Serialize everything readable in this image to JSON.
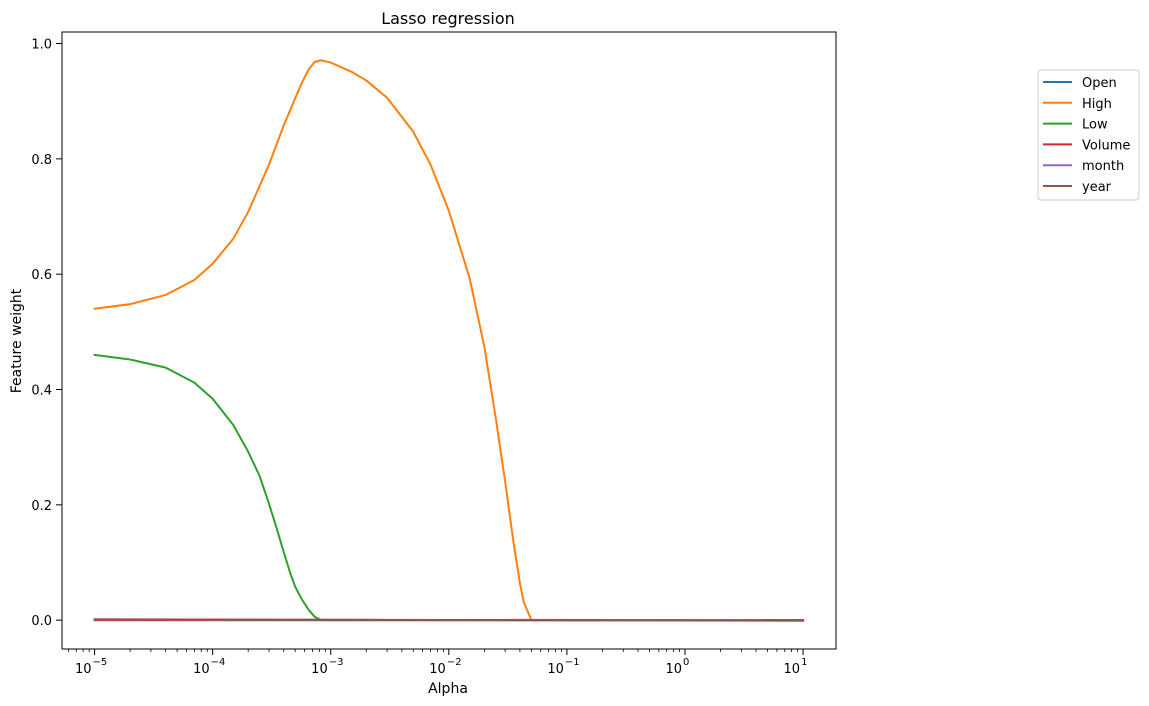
{
  "chart_data": {
    "type": "line",
    "title": "Lasso regression",
    "xlabel": "Alpha",
    "ylabel": "Feature weight",
    "xscale": "log",
    "xlim": [
      5.3e-06,
      19.0
    ],
    "ylim": [
      -0.05,
      1.02
    ],
    "grid": false,
    "legend_placement": "outside-right",
    "x_ticks": [
      {
        "value": 1e-05,
        "base": "10",
        "exp": "−5"
      },
      {
        "value": 0.0001,
        "base": "10",
        "exp": "−4"
      },
      {
        "value": 0.001,
        "base": "10",
        "exp": "−3"
      },
      {
        "value": 0.01,
        "base": "10",
        "exp": "−2"
      },
      {
        "value": 0.1,
        "base": "10",
        "exp": "−1"
      },
      {
        "value": 1,
        "base": "10",
        "exp": "0"
      },
      {
        "value": 10,
        "base": "10",
        "exp": "1"
      }
    ],
    "y_ticks": [
      {
        "value": 0.0,
        "label": "0.0"
      },
      {
        "value": 0.2,
        "label": "0.2"
      },
      {
        "value": 0.4,
        "label": "0.4"
      },
      {
        "value": 0.6,
        "label": "0.6"
      },
      {
        "value": 0.8,
        "label": "0.8"
      },
      {
        "value": 1.0,
        "label": "1.0"
      }
    ],
    "series": [
      {
        "name": "Open",
        "color": "#1f77b4",
        "x": [
          1e-05,
          10
        ],
        "y": [
          0.0,
          0.0
        ]
      },
      {
        "name": "High",
        "color": "#ff7f0e",
        "x": [
          1e-05,
          2e-05,
          4e-05,
          7e-05,
          0.0001,
          0.00015,
          0.0002,
          0.0003,
          0.0004,
          0.0005,
          0.00057,
          0.00065,
          0.00073,
          0.00083,
          0.001,
          0.0015,
          0.002,
          0.003,
          0.005,
          0.007,
          0.01,
          0.015,
          0.02,
          0.025,
          0.03,
          0.035,
          0.04,
          0.043,
          0.05,
          10
        ],
        "y": [
          0.54,
          0.548,
          0.564,
          0.59,
          0.618,
          0.662,
          0.708,
          0.79,
          0.858,
          0.905,
          0.932,
          0.955,
          0.968,
          0.971,
          0.967,
          0.951,
          0.936,
          0.906,
          0.847,
          0.79,
          0.71,
          0.593,
          0.474,
          0.35,
          0.24,
          0.14,
          0.064,
          0.032,
          0.0,
          0.0
        ]
      },
      {
        "name": "Low",
        "color": "#2ca02c",
        "x": [
          1e-05,
          2e-05,
          4e-05,
          7e-05,
          0.0001,
          0.00015,
          0.0002,
          0.00025,
          0.0003,
          0.00035,
          0.0004,
          0.00045,
          0.0005,
          0.00057,
          0.00065,
          0.00073,
          0.00083,
          10
        ],
        "y": [
          0.46,
          0.452,
          0.438,
          0.412,
          0.384,
          0.338,
          0.292,
          0.25,
          0.202,
          0.158,
          0.118,
          0.084,
          0.058,
          0.036,
          0.018,
          0.006,
          0.0,
          0.0
        ]
      },
      {
        "name": "Volume",
        "color": "#d62728",
        "x": [
          1e-05,
          10
        ],
        "y": [
          0.0,
          0.0
        ]
      },
      {
        "name": "month",
        "color": "#9467bd",
        "x": [
          1e-05,
          10
        ],
        "y": [
          0.001,
          0.0
        ]
      },
      {
        "name": "year",
        "color": "#8c564b",
        "x": [
          1e-05,
          10
        ],
        "y": [
          0.0015,
          -0.001
        ]
      }
    ]
  }
}
